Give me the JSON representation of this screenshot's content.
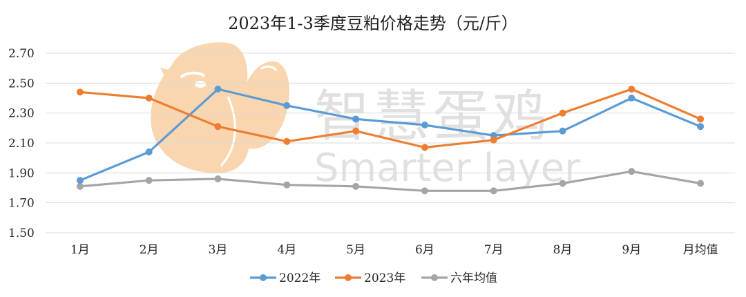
{
  "chart_data": {
    "type": "line",
    "title": "2023年1-3季度豆粕价格走势（元/斤）",
    "xlabel": "",
    "ylabel": "",
    "categories": [
      "1月",
      "2月",
      "3月",
      "4月",
      "5月",
      "6月",
      "7月",
      "8月",
      "9月",
      "月均值"
    ],
    "ylim": [
      1.5,
      2.7
    ],
    "yticks": [
      "1.50",
      "1.70",
      "1.90",
      "2.10",
      "2.30",
      "2.50",
      "2.70"
    ],
    "grid": true,
    "legend_position": "bottom",
    "series": [
      {
        "name": "2022年",
        "color": "#5b9bd5",
        "values": [
          1.85,
          2.04,
          2.46,
          2.35,
          2.26,
          2.22,
          2.15,
          2.18,
          2.4,
          2.21
        ]
      },
      {
        "name": "2023年",
        "color": "#ed7d31",
        "values": [
          2.44,
          2.4,
          2.21,
          2.11,
          2.18,
          2.07,
          2.12,
          2.3,
          2.46,
          2.26
        ]
      },
      {
        "name": "六年均值",
        "color": "#a5a5a5",
        "values": [
          1.81,
          1.85,
          1.86,
          1.82,
          1.81,
          1.78,
          1.78,
          1.83,
          1.91,
          1.83
        ]
      }
    ]
  },
  "watermark": {
    "brand_cn": "智慧蛋鸡",
    "brand_en": "Smarter layer",
    "color": "#c8c8c8",
    "logo_color": "#f5b56f"
  }
}
